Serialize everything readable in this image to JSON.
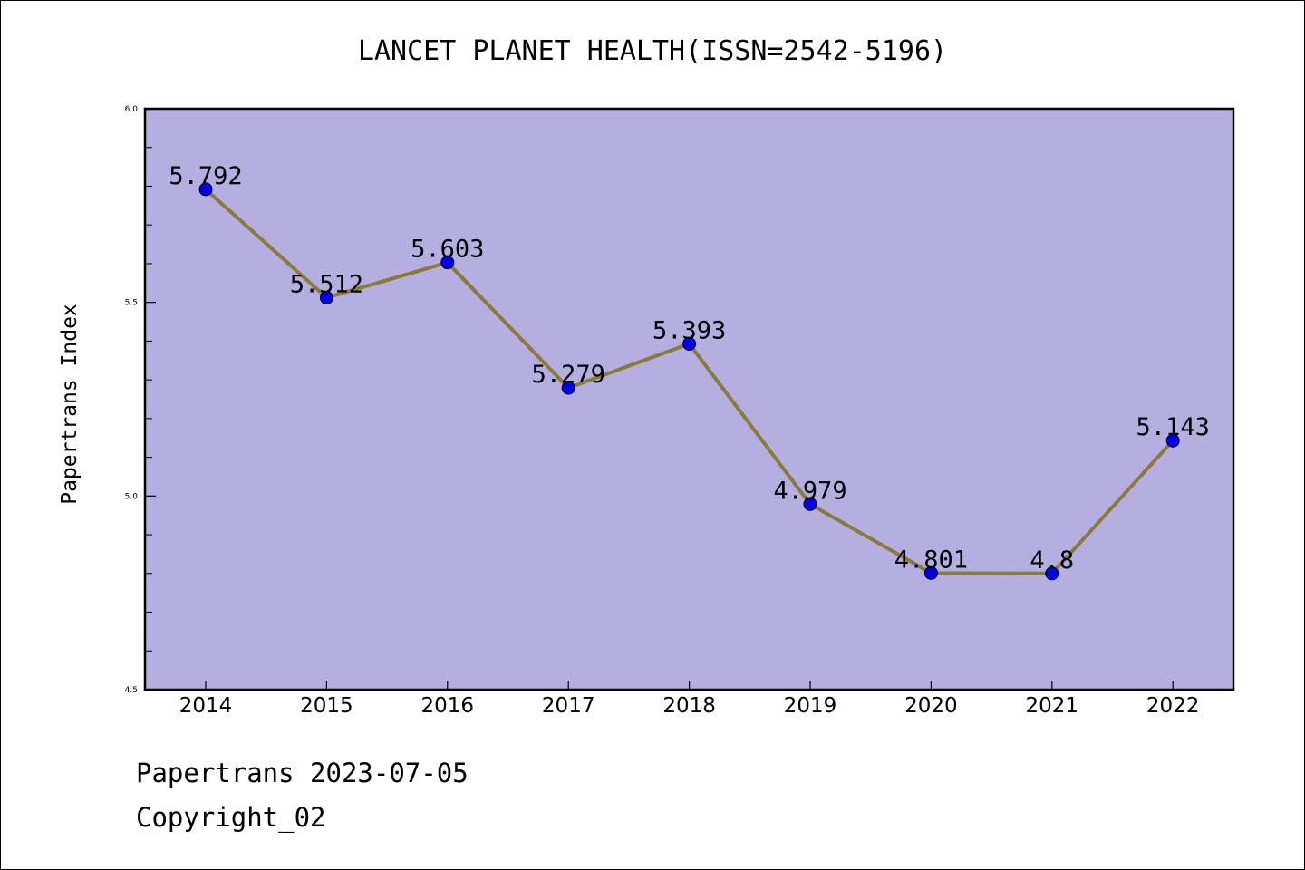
{
  "chart_data": {
    "type": "line",
    "title": "LANCET PLANET HEALTH(ISSN=2542-5196)",
    "xlabel": "",
    "ylabel": "Papertrans Index",
    "categories": [
      "2014",
      "2015",
      "2016",
      "2017",
      "2018",
      "2019",
      "2020",
      "2021",
      "2022"
    ],
    "values": [
      5.792,
      5.512,
      5.603,
      5.279,
      5.393,
      4.979,
      4.801,
      4.8,
      5.143
    ],
    "data_labels": [
      "5.792",
      "5.512",
      "5.603",
      "5.279",
      "5.393",
      "4.979",
      "4.801",
      "4.8",
      "5.143"
    ],
    "ylim": [
      4.5,
      6.0
    ],
    "yticks": [
      "4.5",
      "5.0",
      "5.5",
      "6.0"
    ],
    "grid": false,
    "colors": {
      "plot_background": "#b5afe1",
      "line": "#8b7a3a",
      "marker": "#0000ee"
    }
  },
  "footer": {
    "date_line": "Papertrans 2023-07-05",
    "copyright": "Copyright_02"
  }
}
